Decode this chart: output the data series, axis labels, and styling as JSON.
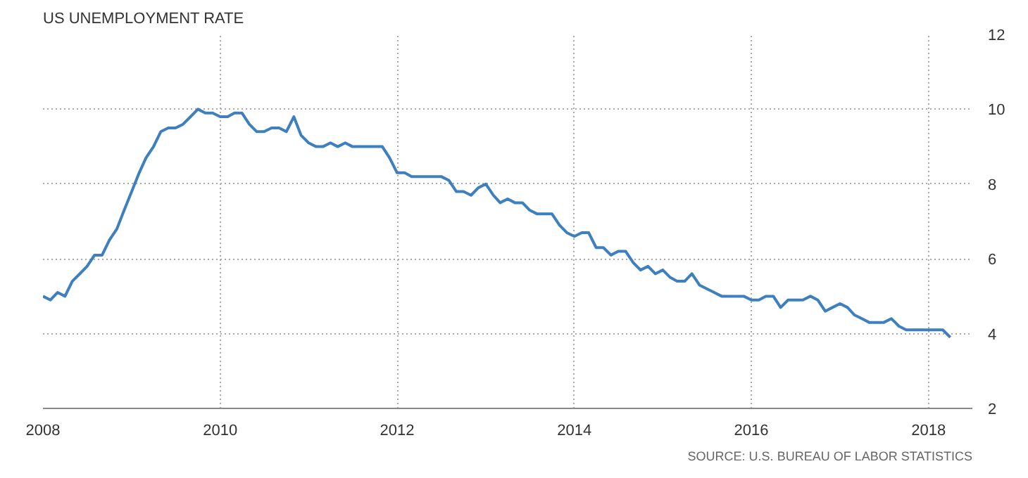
{
  "chart_data": {
    "type": "line",
    "title": "US UNEMPLOYMENT RATE",
    "x": [
      "2008-01",
      "2008-02",
      "2008-03",
      "2008-04",
      "2008-05",
      "2008-06",
      "2008-07",
      "2008-08",
      "2008-09",
      "2008-10",
      "2008-11",
      "2008-12",
      "2009-01",
      "2009-02",
      "2009-03",
      "2009-04",
      "2009-05",
      "2009-06",
      "2009-07",
      "2009-08",
      "2009-09",
      "2009-10",
      "2009-11",
      "2009-12",
      "2010-01",
      "2010-02",
      "2010-03",
      "2010-04",
      "2010-05",
      "2010-06",
      "2010-07",
      "2010-08",
      "2010-09",
      "2010-10",
      "2010-11",
      "2010-12",
      "2011-01",
      "2011-02",
      "2011-03",
      "2011-04",
      "2011-05",
      "2011-06",
      "2011-07",
      "2011-08",
      "2011-09",
      "2011-10",
      "2011-11",
      "2011-12",
      "2012-01",
      "2012-02",
      "2012-03",
      "2012-04",
      "2012-05",
      "2012-06",
      "2012-07",
      "2012-08",
      "2012-09",
      "2012-10",
      "2012-11",
      "2012-12",
      "2013-01",
      "2013-02",
      "2013-03",
      "2013-04",
      "2013-05",
      "2013-06",
      "2013-07",
      "2013-08",
      "2013-09",
      "2013-10",
      "2013-11",
      "2013-12",
      "2014-01",
      "2014-02",
      "2014-03",
      "2014-04",
      "2014-05",
      "2014-06",
      "2014-07",
      "2014-08",
      "2014-09",
      "2014-10",
      "2014-11",
      "2014-12",
      "2015-01",
      "2015-02",
      "2015-03",
      "2015-04",
      "2015-05",
      "2015-06",
      "2015-07",
      "2015-08",
      "2015-09",
      "2015-10",
      "2015-11",
      "2015-12",
      "2016-01",
      "2016-02",
      "2016-03",
      "2016-04",
      "2016-05",
      "2016-06",
      "2016-07",
      "2016-08",
      "2016-09",
      "2016-10",
      "2016-11",
      "2016-12",
      "2017-01",
      "2017-02",
      "2017-03",
      "2017-04",
      "2017-05",
      "2017-06",
      "2017-07",
      "2017-08",
      "2017-09",
      "2017-10",
      "2017-11",
      "2017-12",
      "2018-01",
      "2018-02",
      "2018-03",
      "2018-04"
    ],
    "series": [
      {
        "color": "#3d7fbf",
        "values": [
          5.0,
          4.9,
          5.1,
          5.0,
          5.4,
          5.6,
          5.8,
          6.1,
          6.1,
          6.5,
          6.8,
          7.3,
          7.8,
          8.3,
          8.7,
          9.0,
          9.4,
          9.5,
          9.5,
          9.6,
          9.8,
          10.0,
          9.9,
          9.9,
          9.8,
          9.8,
          9.9,
          9.9,
          9.6,
          9.4,
          9.4,
          9.5,
          9.5,
          9.4,
          9.8,
          9.3,
          9.1,
          9.0,
          9.0,
          9.1,
          9.0,
          9.1,
          9.0,
          9.0,
          9.0,
          9.0,
          9.0,
          8.7,
          8.3,
          8.3,
          8.2,
          8.2,
          8.2,
          8.2,
          8.2,
          8.1,
          7.8,
          7.8,
          7.7,
          7.9,
          8.0,
          7.7,
          7.5,
          7.6,
          7.5,
          7.5,
          7.3,
          7.2,
          7.2,
          7.2,
          6.9,
          6.7,
          6.6,
          6.7,
          6.7,
          6.3,
          6.3,
          6.1,
          6.2,
          6.2,
          5.9,
          5.7,
          5.8,
          5.6,
          5.7,
          5.5,
          5.4,
          5.4,
          5.6,
          5.3,
          5.2,
          5.1,
          5.0,
          5.0,
          5.0,
          5.0,
          4.9,
          4.9,
          5.0,
          5.0,
          4.7,
          4.9,
          4.9,
          4.9,
          5.0,
          4.9,
          4.6,
          4.7,
          4.8,
          4.7,
          4.5,
          4.4,
          4.3,
          4.3,
          4.3,
          4.4,
          4.2,
          4.1,
          4.1,
          4.1,
          4.1,
          4.1,
          4.1,
          3.9
        ]
      }
    ],
    "xlim": [
      "2008-01",
      "2018-07"
    ],
    "xticks": [
      "2008",
      "2010",
      "2012",
      "2014",
      "2016",
      "2018"
    ],
    "ylim": [
      2,
      12
    ],
    "yticks": [
      2,
      4,
      6,
      8,
      10,
      12
    ],
    "grid": true,
    "annotations": [
      "SOURCE: U.S. BUREAU OF LABOR STATISTICS"
    ]
  }
}
